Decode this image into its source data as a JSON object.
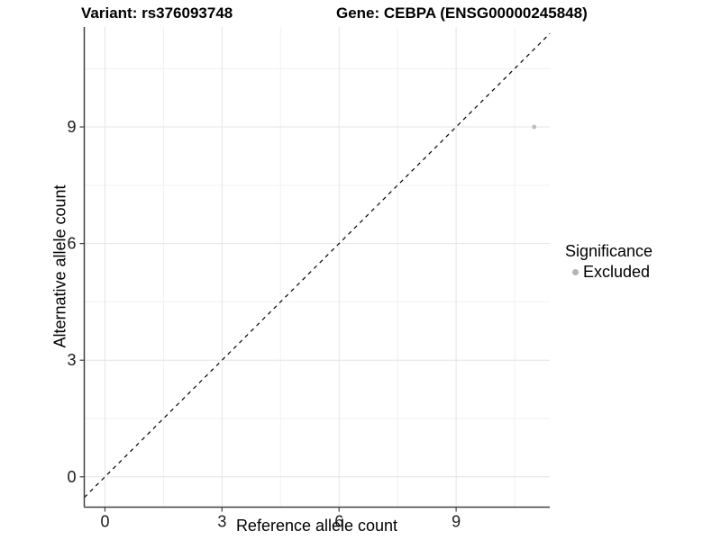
{
  "chart_data": {
    "type": "scatter",
    "title_left": "Variant: rs376093748",
    "title_right": "Gene: CEBPA (ENSG00000245848)",
    "xlabel": "Reference allele count",
    "ylabel": "Alternative allele count",
    "xlim": [
      -0.53,
      11.4
    ],
    "ylim": [
      -0.78,
      11.57
    ],
    "x_ticks": [
      0,
      3,
      6,
      9
    ],
    "y_ticks": [
      0,
      3,
      6,
      9
    ],
    "x_minor_gridlines": [
      1.5,
      4.5,
      7.5,
      10.5
    ],
    "y_minor_gridlines": [
      1.5,
      4.5,
      7.5,
      10.5
    ],
    "grid": true,
    "points": [
      {
        "x": 11,
        "y": 9,
        "series": "Excluded"
      }
    ],
    "identity_line": {
      "slope": 1,
      "intercept": 0,
      "style": "dashed"
    },
    "legend": {
      "title": "Significance",
      "position": "right",
      "items": [
        {
          "label": "Excluded",
          "color": "#b5b5b5"
        }
      ]
    },
    "colors": {
      "point": "#bdbdbd",
      "grid_major": "#e4e4e4",
      "grid_minor": "#f1f1f1",
      "axis": "#404040",
      "identity_line": "#000000",
      "tick_text": "#1a1a1a"
    }
  }
}
